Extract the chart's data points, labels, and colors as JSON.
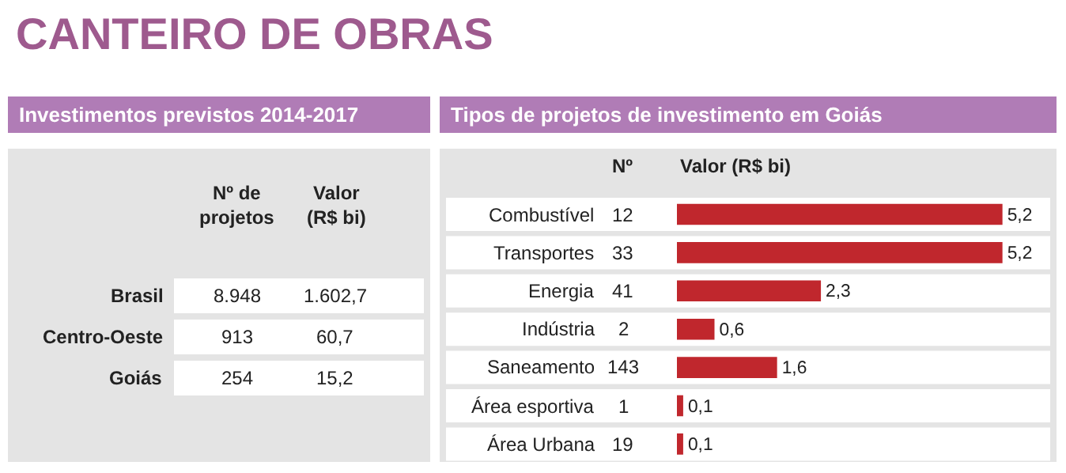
{
  "chart_data": [
    {
      "type": "other",
      "title": "CANTEIRO DE OBRAS",
      "subtitle": "Investimentos previstos 2014-2017",
      "annotations": [
        "Nº de projetos",
        "Valor (R$ bi)",
        "Brasil",
        "8.948",
        "1.602,7",
        "Centro-Oeste",
        "913",
        "60,7",
        "Goiás",
        "254",
        "15,2"
      ]
    },
    {
      "type": "bar",
      "orientation": "horizontal",
      "title": "Tipos de projetos de investimento em Goiás",
      "categories": [
        "Combustível",
        "Transportes",
        "Energia",
        "Indústria",
        "Saneamento",
        "Área esportiva",
        "Área Urbana"
      ],
      "values": [
        5.2,
        5.2,
        2.3,
        0.6,
        1.6,
        0.1,
        0.1
      ],
      "value_labels": [
        "5,2",
        "5,2",
        "2,3",
        "0,6",
        "1,6",
        "0,1",
        "0,1"
      ],
      "color": "#c0272d",
      "annotations": [
        "Nº",
        "Valor (R$ bi)",
        "12",
        "33",
        "41",
        "2",
        "143",
        "1",
        "19"
      ]
    }
  ]
}
